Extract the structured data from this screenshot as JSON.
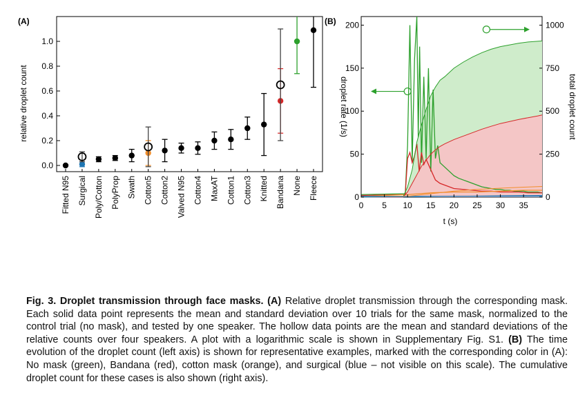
{
  "chart_data": [
    {
      "panel_label": "(A)",
      "type": "scatter",
      "ylabel": "relative droplet count",
      "ylim": [
        -0.05,
        1.2
      ],
      "yticks": [
        "0.0",
        "0.2",
        "0.4",
        "0.6",
        "0.8",
        "1.0"
      ],
      "categories": [
        "Fitted N95",
        "Surgical",
        "Poly/Cotton",
        "PolyProp",
        "Swath",
        "Cotton5",
        "Cotton2",
        "Valved N95",
        "Cotton4",
        "MaxAT",
        "Cotton1",
        "Cotton3",
        "Knitted",
        "Bandana",
        "None",
        "Fleece"
      ],
      "solid_points": [
        {
          "category": "Fitted N95",
          "value": 0.0,
          "err": 0.0,
          "color": "#000000"
        },
        {
          "category": "Surgical",
          "value": 0.01,
          "err": 0.02,
          "color": "#1f77b4"
        },
        {
          "category": "Poly/Cotton",
          "value": 0.05,
          "err": 0.02,
          "color": "#000000"
        },
        {
          "category": "PolyProp",
          "value": 0.06,
          "err": 0.02,
          "color": "#000000"
        },
        {
          "category": "Swath",
          "value": 0.08,
          "err": 0.05,
          "color": "#000000"
        },
        {
          "category": "Cotton5",
          "value": 0.1,
          "err": 0.1,
          "color": "#f28e2b"
        },
        {
          "category": "Cotton2",
          "value": 0.12,
          "err": 0.09,
          "color": "#000000"
        },
        {
          "category": "Valved N95",
          "value": 0.14,
          "err": 0.04,
          "color": "#000000"
        },
        {
          "category": "Cotton4",
          "value": 0.14,
          "err": 0.05,
          "color": "#000000"
        },
        {
          "category": "MaxAT",
          "value": 0.2,
          "err": 0.07,
          "color": "#000000"
        },
        {
          "category": "Cotton1",
          "value": 0.21,
          "err": 0.08,
          "color": "#000000"
        },
        {
          "category": "Cotton3",
          "value": 0.3,
          "err": 0.09,
          "color": "#000000"
        },
        {
          "category": "Knitted",
          "value": 0.33,
          "err": 0.25,
          "color": "#000000"
        },
        {
          "category": "Bandana",
          "value": 0.52,
          "err": 0.26,
          "color": "#d62728"
        },
        {
          "category": "None",
          "value": 1.0,
          "err": 0.26,
          "color": "#2ca02c"
        },
        {
          "category": "Fleece",
          "value": 1.09,
          "err": 0.46,
          "color": "#000000"
        }
      ],
      "hollow_points": [
        {
          "category": "Surgical",
          "value": 0.07,
          "err": 0.04
        },
        {
          "category": "Cotton5",
          "value": 0.15,
          "err": 0.16
        },
        {
          "category": "Bandana",
          "value": 0.65,
          "err": 0.45
        }
      ]
    },
    {
      "panel_label": "(B)",
      "type": "line",
      "xlabel": "t (s)",
      "ylabel": "droplet rate (1/s)",
      "y2label": "total droplet count",
      "xlim": [
        0,
        39
      ],
      "ylim": [
        0,
        210
      ],
      "y2lim": [
        0,
        1050
      ],
      "xticks": [
        "0",
        "5",
        "10",
        "15",
        "20",
        "25",
        "30",
        "35"
      ],
      "yticks": [
        "0",
        "50",
        "100",
        "150",
        "200"
      ],
      "y2ticks": [
        "0",
        "250",
        "500",
        "750",
        "1000"
      ],
      "series": [
        {
          "color": "#2ca02c",
          "axis": "left",
          "x": [
            0,
            9.5,
            10,
            10.5,
            11,
            11.5,
            12,
            12.3,
            12.6,
            13,
            13.5,
            14,
            14.5,
            15,
            15.5,
            16,
            16.5,
            17,
            18,
            19,
            20,
            21,
            22,
            23,
            24,
            25,
            26,
            27,
            28,
            29,
            30,
            31,
            32,
            33,
            34,
            35,
            36,
            37,
            38,
            39
          ],
          "y": [
            3,
            4,
            60,
            200,
            40,
            160,
            215,
            70,
            175,
            40,
            140,
            45,
            150,
            30,
            125,
            45,
            60,
            40,
            35,
            30,
            25,
            22,
            20,
            18,
            16,
            14,
            12,
            11,
            10,
            9,
            9,
            8,
            8,
            7,
            7,
            7,
            6,
            6,
            6,
            5
          ]
        },
        {
          "color": "#d62728",
          "axis": "left",
          "x": [
            0,
            9.5,
            10,
            10.5,
            11,
            11.5,
            12,
            12.5,
            13,
            13.5,
            14,
            15,
            16,
            17,
            18,
            19,
            20,
            22,
            24,
            26,
            28,
            30,
            32,
            34,
            36,
            38,
            39
          ],
          "y": [
            2,
            3,
            45,
            52,
            40,
            48,
            62,
            30,
            52,
            38,
            44,
            32,
            20,
            16,
            14,
            12,
            10,
            9,
            8,
            7,
            7,
            6,
            6,
            6,
            5,
            5,
            5
          ]
        },
        {
          "color": "#f28e2b",
          "axis": "left",
          "x": [
            0,
            10,
            15,
            20,
            25,
            30,
            35,
            39
          ],
          "y": [
            1,
            3,
            5,
            6,
            6,
            7,
            8,
            8
          ]
        },
        {
          "color": "#1f77b4",
          "axis": "left",
          "x": [
            0,
            10,
            20,
            30,
            39
          ],
          "y": [
            1,
            1,
            1,
            1,
            1
          ]
        },
        {
          "color": "#2ca02c",
          "axis": "right",
          "fill": "#cfeccb",
          "x": [
            0,
            9,
            10,
            11,
            12,
            13,
            14,
            15,
            16,
            17,
            18,
            20,
            22,
            24,
            26,
            28,
            30,
            32,
            34,
            36,
            38,
            39
          ],
          "y": [
            0,
            0,
            60,
            160,
            320,
            420,
            510,
            590,
            640,
            680,
            700,
            750,
            785,
            815,
            840,
            860,
            875,
            885,
            895,
            902,
            906,
            908
          ]
        },
        {
          "color": "#d62728",
          "axis": "right",
          "fill": "#f4c6c6",
          "x": [
            0,
            9,
            10,
            11,
            12,
            13,
            14,
            15,
            16,
            17,
            18,
            20,
            22,
            24,
            26,
            28,
            30,
            32,
            34,
            36,
            38,
            39
          ],
          "y": [
            0,
            0,
            30,
            80,
            130,
            180,
            215,
            250,
            275,
            295,
            310,
            335,
            355,
            375,
            395,
            412,
            428,
            440,
            452,
            462,
            472,
            478
          ]
        },
        {
          "color": "#f28e2b",
          "axis": "right",
          "x": [
            0,
            10,
            15,
            20,
            25,
            30,
            35,
            39
          ],
          "y": [
            0,
            5,
            20,
            35,
            45,
            52,
            58,
            62
          ]
        },
        {
          "color": "#1f77b4",
          "axis": "right",
          "x": [
            0,
            10,
            20,
            30,
            39
          ],
          "y": [
            0,
            2,
            5,
            8,
            10
          ]
        }
      ],
      "annotations": [
        {
          "type": "arrow-left",
          "at_x": 10.0,
          "at_y": 123
        },
        {
          "type": "arrow-right",
          "at_x": 27.0,
          "at_y": 975,
          "axis": "right"
        }
      ]
    }
  ],
  "caption": {
    "fig_label": "Fig. 3.",
    "title": "Droplet transmission through face masks.",
    "label_a": "(A)",
    "text_a": "Relative droplet transmission through the corresponding mask. Each solid data point represents the mean and standard deviation over 10 trials for the same mask, normalized to the control trial (no mask), and tested by one speaker. The hollow data points are the mean and standard deviations of the relative counts over four speakers. A plot with a logarithmic scale is shown in Supplementary Fig. S1.",
    "label_b": "(B)",
    "text_b": "The time evolution of the droplet count (left axis) is shown for representative examples, marked with the corresponding color in (A): No mask (green), Bandana (red), cotton mask (orange), and surgical (blue – not visible on this scale). The cumulative droplet count for these cases is also shown (right axis)."
  }
}
